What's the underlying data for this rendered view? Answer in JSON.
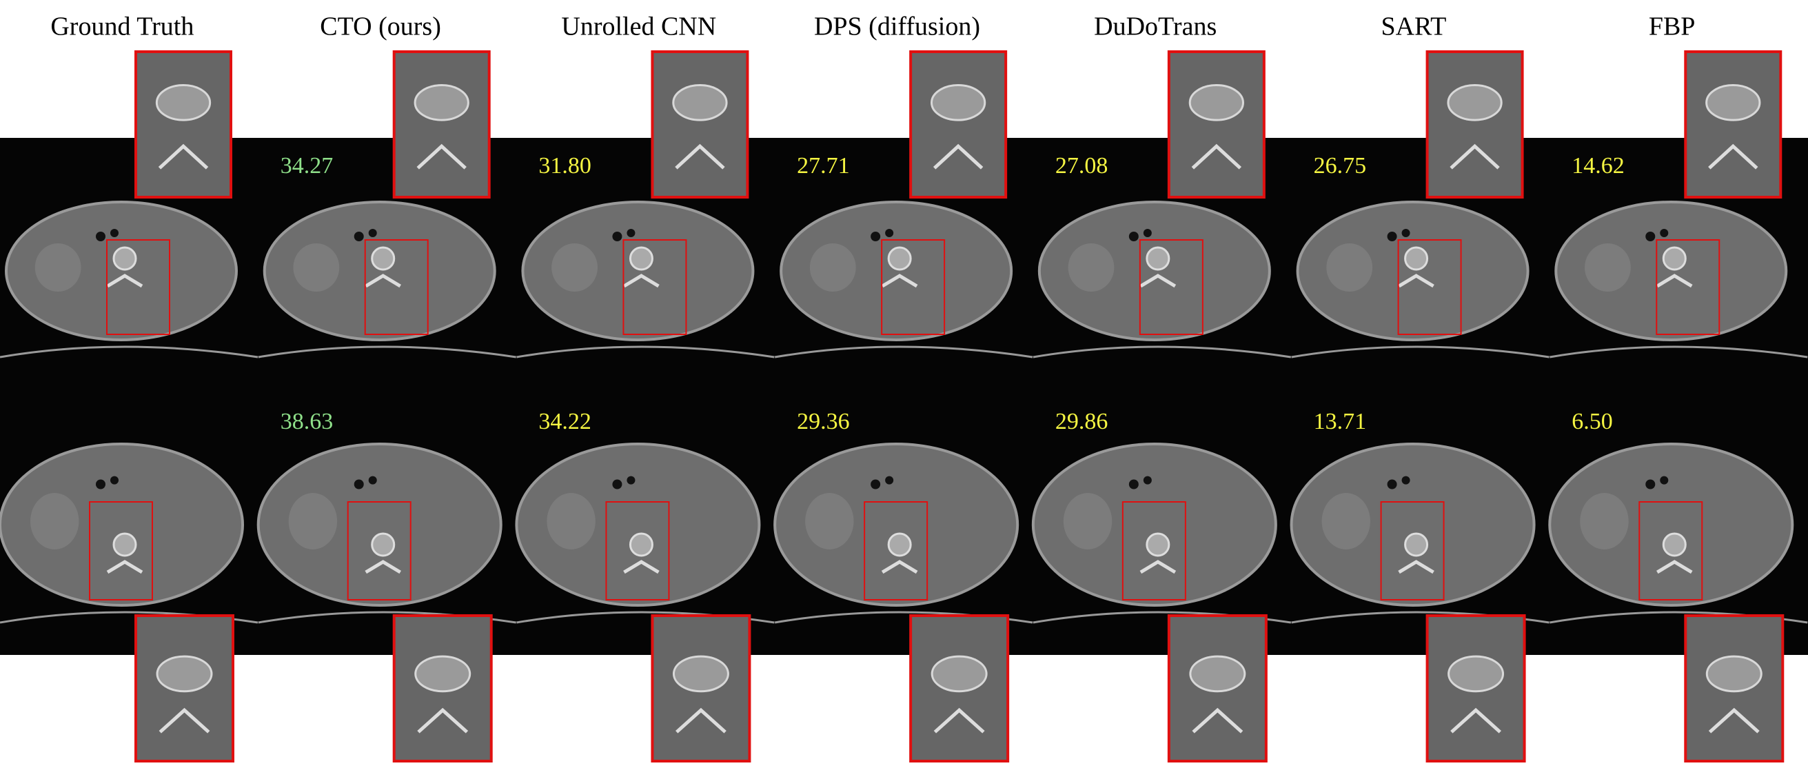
{
  "methods": [
    {
      "name": "Ground Truth"
    },
    {
      "name": "CTO (ours)",
      "scores": [
        "34.27",
        "38.63"
      ]
    },
    {
      "name": "Unrolled CNN",
      "scores": [
        "31.80",
        "34.22"
      ]
    },
    {
      "name": "DPS (diffusion)",
      "scores": [
        "27.71",
        "29.36"
      ]
    },
    {
      "name": "DuDoTrans",
      "scores": [
        "27.08",
        "29.86"
      ]
    },
    {
      "name": "SART",
      "scores": [
        "26.75",
        "13.71"
      ]
    },
    {
      "name": "FBP",
      "scores": [
        "14.62",
        "6.50"
      ]
    }
  ]
}
